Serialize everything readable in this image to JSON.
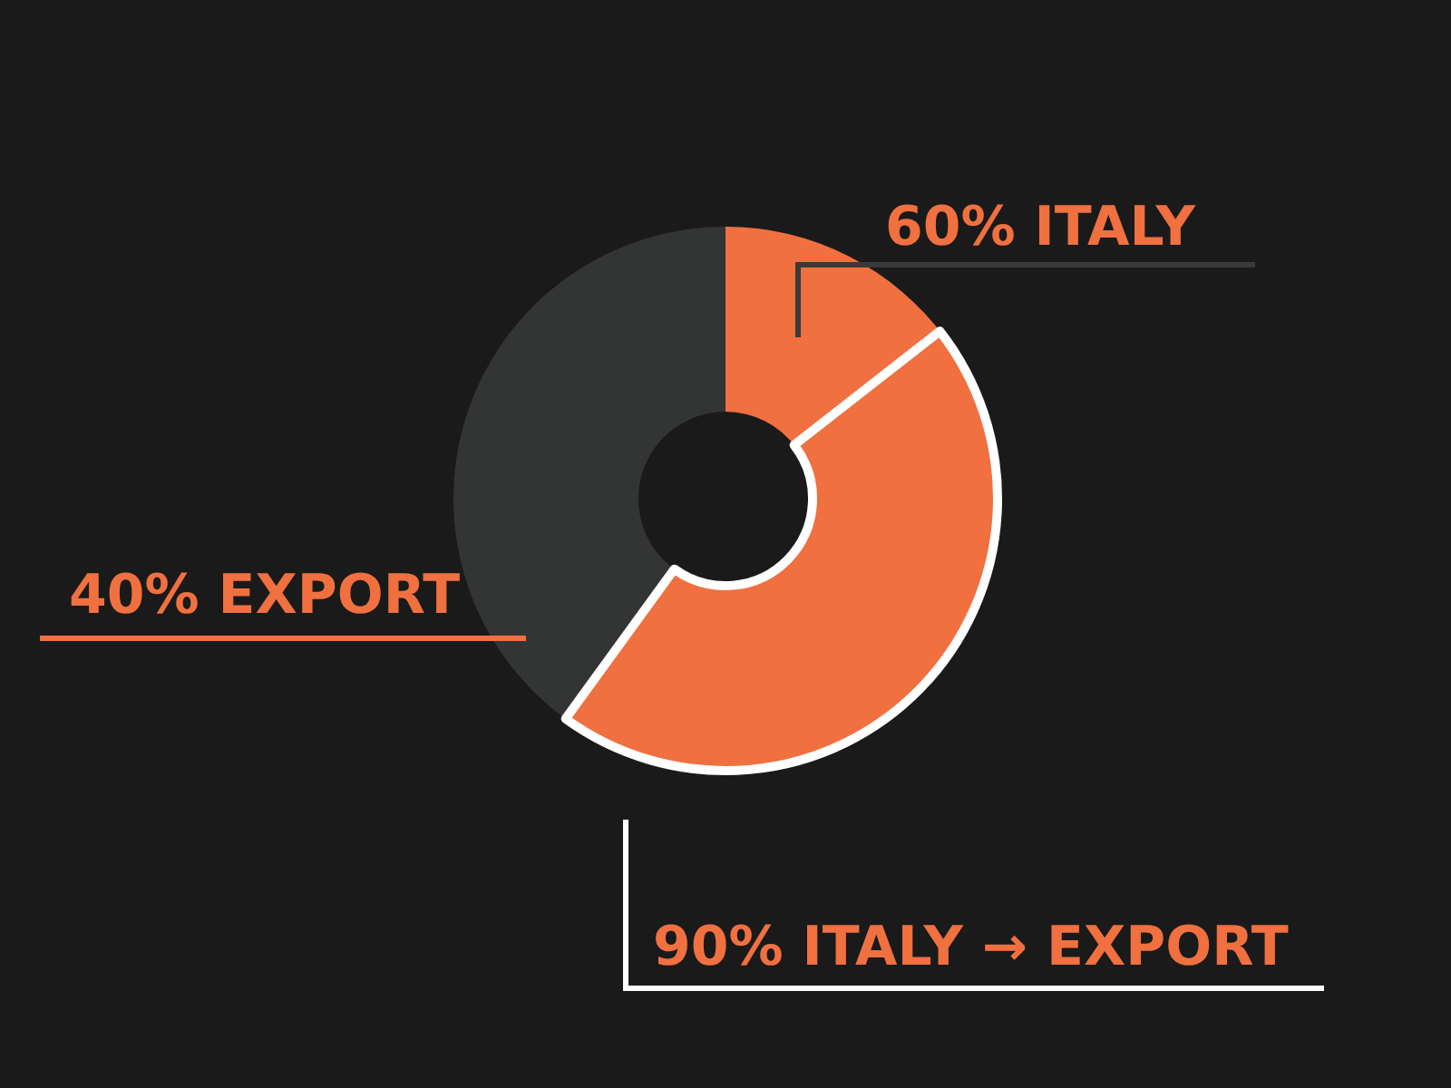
{
  "chart_data": {
    "type": "donut",
    "categories": [
      "ITALY",
      "EXPORT"
    ],
    "values": [
      60,
      40
    ],
    "colors": [
      "#f07040",
      "#333534"
    ],
    "value_labels": [
      "60%",
      "40%"
    ],
    "annotations": [
      "90% ITALY → EXPORT"
    ]
  }
}
